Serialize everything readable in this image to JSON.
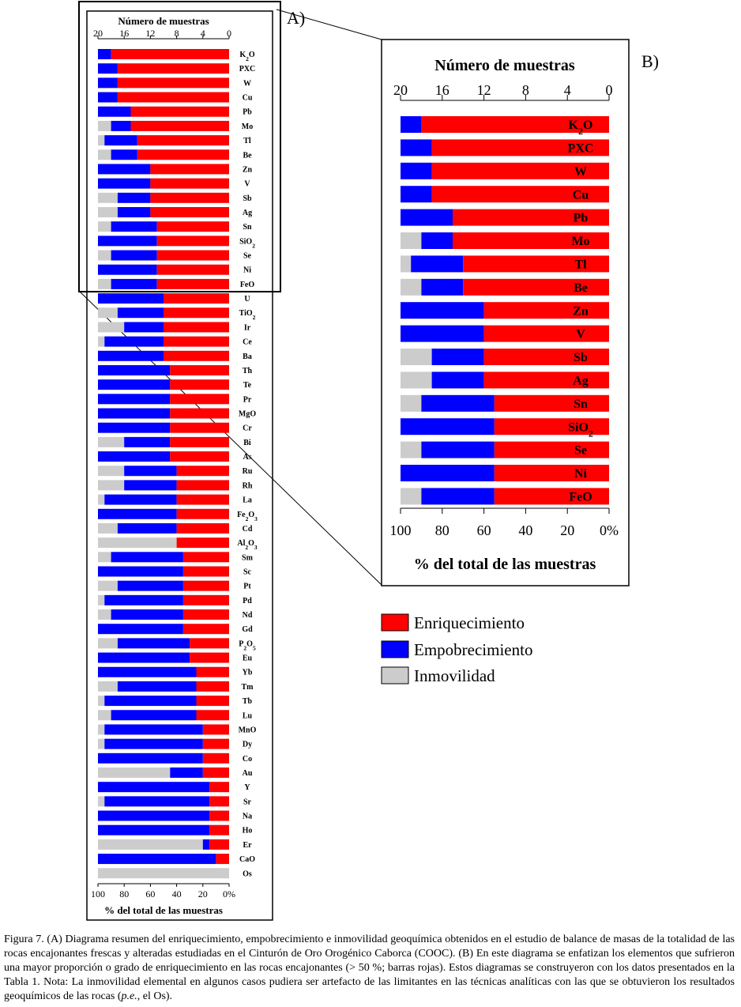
{
  "colors": {
    "enrichment": "#ff0000",
    "depletion": "#0000ff",
    "immobility": "#cccccc"
  },
  "panel_labels": {
    "a": "A)",
    "b": "B)"
  },
  "legend": {
    "enrichment": "Enriquecimiento",
    "depletion": "Empobrecimiento",
    "immobility": "Inmovilidad"
  },
  "chart_data": [
    {
      "id": "A",
      "type": "bar",
      "orientation": "horizontal-stacked",
      "title": "Número de muestras",
      "xlabel": "% del total de las muestras",
      "top_ticks": [
        "20",
        "16",
        "12",
        "8",
        "4",
        "0"
      ],
      "bottom_ticks": [
        "100",
        "80",
        "60",
        "40",
        "20",
        "0%"
      ],
      "xlim_count": [
        20,
        0
      ],
      "xlim_percent": [
        100,
        0
      ],
      "series_order": [
        "immobility",
        "depletion",
        "enrichment"
      ],
      "rows": [
        {
          "label": "K2O",
          "immobility": 0,
          "depletion": 10,
          "enrichment": 90
        },
        {
          "label": "PXC",
          "immobility": 0,
          "depletion": 15,
          "enrichment": 85
        },
        {
          "label": "W",
          "immobility": 0,
          "depletion": 15,
          "enrichment": 85
        },
        {
          "label": "Cu",
          "immobility": 0,
          "depletion": 15,
          "enrichment": 85
        },
        {
          "label": "Pb",
          "immobility": 0,
          "depletion": 25,
          "enrichment": 75
        },
        {
          "label": "Mo",
          "immobility": 10,
          "depletion": 15,
          "enrichment": 75
        },
        {
          "label": "Tl",
          "immobility": 5,
          "depletion": 25,
          "enrichment": 70
        },
        {
          "label": "Be",
          "immobility": 10,
          "depletion": 20,
          "enrichment": 70
        },
        {
          "label": "Zn",
          "immobility": 0,
          "depletion": 40,
          "enrichment": 60
        },
        {
          "label": "V",
          "immobility": 0,
          "depletion": 40,
          "enrichment": 60
        },
        {
          "label": "Sb",
          "immobility": 15,
          "depletion": 25,
          "enrichment": 60
        },
        {
          "label": "Ag",
          "immobility": 15,
          "depletion": 25,
          "enrichment": 60
        },
        {
          "label": "Sn",
          "immobility": 10,
          "depletion": 35,
          "enrichment": 55
        },
        {
          "label": "SiO2",
          "immobility": 0,
          "depletion": 45,
          "enrichment": 55
        },
        {
          "label": "Se",
          "immobility": 10,
          "depletion": 35,
          "enrichment": 55
        },
        {
          "label": "Ni",
          "immobility": 0,
          "depletion": 45,
          "enrichment": 55
        },
        {
          "label": "FeO",
          "immobility": 10,
          "depletion": 35,
          "enrichment": 55
        },
        {
          "label": "U",
          "immobility": 0,
          "depletion": 50,
          "enrichment": 50
        },
        {
          "label": "TiO2",
          "immobility": 15,
          "depletion": 35,
          "enrichment": 50
        },
        {
          "label": "Ir",
          "immobility": 20,
          "depletion": 30,
          "enrichment": 50
        },
        {
          "label": "Ce",
          "immobility": 5,
          "depletion": 45,
          "enrichment": 50
        },
        {
          "label": "Ba",
          "immobility": 0,
          "depletion": 50,
          "enrichment": 50
        },
        {
          "label": "Th",
          "immobility": 0,
          "depletion": 55,
          "enrichment": 45
        },
        {
          "label": "Te",
          "immobility": 0,
          "depletion": 55,
          "enrichment": 45
        },
        {
          "label": "Pr",
          "immobility": 0,
          "depletion": 55,
          "enrichment": 45
        },
        {
          "label": "MgO",
          "immobility": 0,
          "depletion": 55,
          "enrichment": 45
        },
        {
          "label": "Cr",
          "immobility": 0,
          "depletion": 55,
          "enrichment": 45
        },
        {
          "label": "Bi",
          "immobility": 20,
          "depletion": 35,
          "enrichment": 45
        },
        {
          "label": "As",
          "immobility": 0,
          "depletion": 55,
          "enrichment": 45
        },
        {
          "label": "Ru",
          "immobility": 20,
          "depletion": 40,
          "enrichment": 40
        },
        {
          "label": "Rh",
          "immobility": 20,
          "depletion": 40,
          "enrichment": 40
        },
        {
          "label": "La",
          "immobility": 5,
          "depletion": 55,
          "enrichment": 40
        },
        {
          "label": "Fe2O3",
          "immobility": 0,
          "depletion": 60,
          "enrichment": 40
        },
        {
          "label": "Cd",
          "immobility": 15,
          "depletion": 45,
          "enrichment": 40
        },
        {
          "label": "Al2O3",
          "immobility": 60,
          "depletion": 0,
          "enrichment": 40
        },
        {
          "label": "Sm",
          "immobility": 10,
          "depletion": 55,
          "enrichment": 35
        },
        {
          "label": "Sc",
          "immobility": 0,
          "depletion": 65,
          "enrichment": 35
        },
        {
          "label": "Pt",
          "immobility": 15,
          "depletion": 50,
          "enrichment": 35
        },
        {
          "label": "Pd",
          "immobility": 5,
          "depletion": 60,
          "enrichment": 35
        },
        {
          "label": "Nd",
          "immobility": 10,
          "depletion": 55,
          "enrichment": 35
        },
        {
          "label": "Gd",
          "immobility": 0,
          "depletion": 65,
          "enrichment": 35
        },
        {
          "label": "P2O5",
          "immobility": 15,
          "depletion": 55,
          "enrichment": 30
        },
        {
          "label": "Eu",
          "immobility": 0,
          "depletion": 70,
          "enrichment": 30
        },
        {
          "label": "Yb",
          "immobility": 0,
          "depletion": 75,
          "enrichment": 25
        },
        {
          "label": "Tm",
          "immobility": 15,
          "depletion": 60,
          "enrichment": 25
        },
        {
          "label": "Tb",
          "immobility": 5,
          "depletion": 70,
          "enrichment": 25
        },
        {
          "label": "Lu",
          "immobility": 10,
          "depletion": 65,
          "enrichment": 25
        },
        {
          "label": "MnO",
          "immobility": 5,
          "depletion": 75,
          "enrichment": 20
        },
        {
          "label": "Dy",
          "immobility": 5,
          "depletion": 75,
          "enrichment": 20
        },
        {
          "label": "Co",
          "immobility": 0,
          "depletion": 80,
          "enrichment": 20
        },
        {
          "label": "Au",
          "immobility": 55,
          "depletion": 25,
          "enrichment": 20
        },
        {
          "label": "Y",
          "immobility": 0,
          "depletion": 85,
          "enrichment": 15
        },
        {
          "label": "Sr",
          "immobility": 5,
          "depletion": 80,
          "enrichment": 15
        },
        {
          "label": "Na",
          "immobility": 0,
          "depletion": 85,
          "enrichment": 15
        },
        {
          "label": "Ho",
          "immobility": 0,
          "depletion": 85,
          "enrichment": 15
        },
        {
          "label": "Er",
          "immobility": 80,
          "depletion": 5,
          "enrichment": 15
        },
        {
          "label": "CaO",
          "immobility": 0,
          "depletion": 90,
          "enrichment": 10
        },
        {
          "label": "Os",
          "immobility": 100,
          "depletion": 0,
          "enrichment": 0
        }
      ]
    },
    {
      "id": "B",
      "type": "bar",
      "orientation": "horizontal-stacked",
      "title": "Número de muestras",
      "xlabel": "% del total de las muestras",
      "top_ticks": [
        "20",
        "16",
        "12",
        "8",
        "4",
        "0"
      ],
      "bottom_ticks": [
        "100",
        "80",
        "60",
        "40",
        "20",
        "0%"
      ],
      "xlim_count": [
        20,
        0
      ],
      "xlim_percent": [
        100,
        0
      ],
      "series_order": [
        "immobility",
        "depletion",
        "enrichment"
      ],
      "rows": [
        {
          "label": "K2O",
          "immobility": 0,
          "depletion": 10,
          "enrichment": 90
        },
        {
          "label": "PXC",
          "immobility": 0,
          "depletion": 15,
          "enrichment": 85
        },
        {
          "label": "W",
          "immobility": 0,
          "depletion": 15,
          "enrichment": 85
        },
        {
          "label": "Cu",
          "immobility": 0,
          "depletion": 15,
          "enrichment": 85
        },
        {
          "label": "Pb",
          "immobility": 0,
          "depletion": 25,
          "enrichment": 75
        },
        {
          "label": "Mo",
          "immobility": 10,
          "depletion": 15,
          "enrichment": 75
        },
        {
          "label": "Tl",
          "immobility": 5,
          "depletion": 25,
          "enrichment": 70
        },
        {
          "label": "Be",
          "immobility": 10,
          "depletion": 20,
          "enrichment": 70
        },
        {
          "label": "Zn",
          "immobility": 0,
          "depletion": 40,
          "enrichment": 60
        },
        {
          "label": "V",
          "immobility": 0,
          "depletion": 40,
          "enrichment": 60
        },
        {
          "label": "Sb",
          "immobility": 15,
          "depletion": 25,
          "enrichment": 60
        },
        {
          "label": "Ag",
          "immobility": 15,
          "depletion": 25,
          "enrichment": 60
        },
        {
          "label": "Sn",
          "immobility": 10,
          "depletion": 35,
          "enrichment": 55
        },
        {
          "label": "SiO2",
          "immobility": 0,
          "depletion": 45,
          "enrichment": 55
        },
        {
          "label": "Se",
          "immobility": 10,
          "depletion": 35,
          "enrichment": 55
        },
        {
          "label": "Ni",
          "immobility": 0,
          "depletion": 45,
          "enrichment": 55
        },
        {
          "label": "FeO",
          "immobility": 10,
          "depletion": 35,
          "enrichment": 55
        }
      ]
    }
  ],
  "caption": {
    "label": "Figura 7.",
    "text_1": " (A) Diagrama resumen del enriquecimiento, empobrecimiento e inmovilidad geoquímica obtenidos en el estudio de balance de masas de la totalidad de las rocas encajonantes frescas y alteradas estudiadas en el Cinturón de Oro Orogénico Caborca (COOC). (B) En este diagrama se enfatizan los elementos que sufrieron una mayor proporción o grado de enriquecimiento en las rocas encajonantes (> 50 %; barras rojas). Estos diagramas se construyeron con los datos presentados en la Tabla 1. Nota: La inmovilidad elemental en algunos casos pudiera ser artefacto de las limitantes en las técnicas analíticas con las que se obtuvieron los resultados geoquímicos de las rocas (",
    "italic": "p.e.",
    "text_2": ", el Os)."
  }
}
